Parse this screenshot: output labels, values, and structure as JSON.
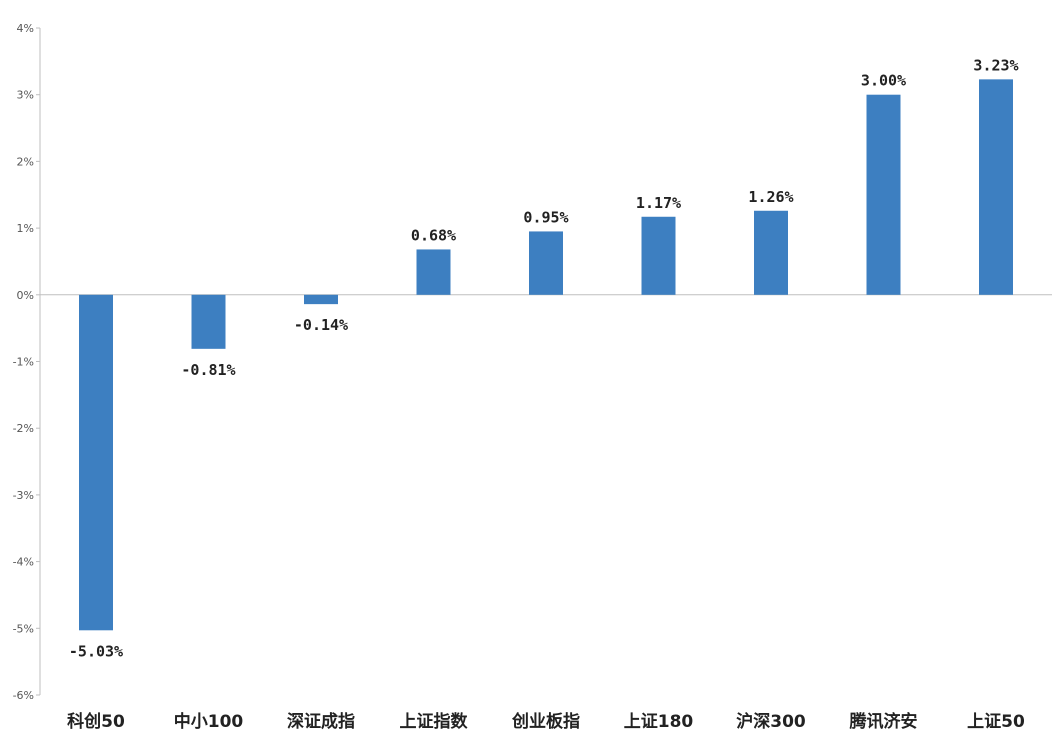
{
  "chart_data": {
    "type": "bar",
    "categories": [
      "科创50",
      "中小100",
      "深证成指",
      "上证指数",
      "创业板指",
      "上证180",
      "沪深300",
      "腾讯济安",
      "上证50"
    ],
    "values": [
      -5.03,
      -0.81,
      -0.14,
      0.68,
      0.95,
      1.17,
      1.26,
      3.0,
      3.23
    ],
    "data_labels": [
      "-5.03%",
      "-0.81%",
      "-0.14%",
      "0.68%",
      "0.95%",
      "1.17%",
      "1.26%",
      "3.00%",
      "3.23%"
    ],
    "ylim": [
      -6,
      4
    ],
    "yticks": [
      4,
      3,
      2,
      1,
      0,
      -1,
      -2,
      -3,
      -4,
      -5,
      -6
    ],
    "ytick_labels": [
      "4%",
      "3%",
      "2%",
      "1%",
      "0%",
      "-1%",
      "-2%",
      "-3%",
      "-4%",
      "-5%",
      "-6%"
    ],
    "grid": false,
    "legend": "none",
    "bar_color": "#3d7fc1"
  }
}
